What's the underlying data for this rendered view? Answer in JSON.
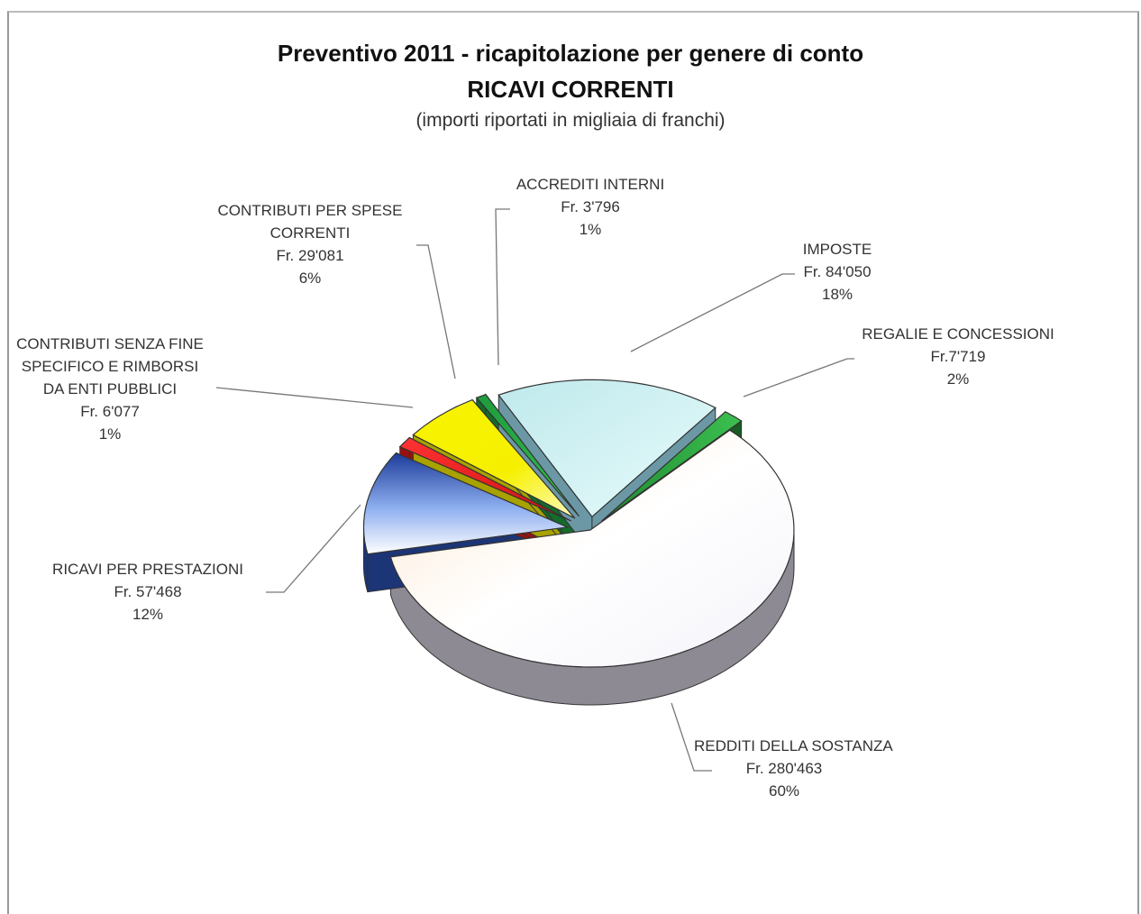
{
  "chart_data": {
    "type": "pie",
    "title": "Preventivo 2011  -  ricapitolazione per genere di conto",
    "subtitle": "RICAVI CORRENTI",
    "note": "(importi riportati in migliaia di franchi)",
    "slices": [
      {
        "key": "redditi",
        "lines": [
          "REDDITI DELLA SOSTANZA"
        ],
        "amount": "Fr. 280'463",
        "percent": "60%",
        "value": 280463,
        "color": "#fff8ee",
        "side": "#8e8a94"
      },
      {
        "key": "prestazioni",
        "lines": [
          "RICAVI PER PRESTAZIONI"
        ],
        "amount": "Fr. 57'468",
        "percent": "12%",
        "value": 57468,
        "color": "#2244aa",
        "side": "#1b3577"
      },
      {
        "key": "senza_fine",
        "lines": [
          "CONTRIBUTI SENZA FINE",
          "SPECIFICO  E RIMBORSI",
          "DA ENTI PUBBLICI"
        ],
        "amount": "Fr. 6'077",
        "percent": "1%",
        "value": 6077,
        "color": "#ee2222",
        "side": "#9a1010"
      },
      {
        "key": "spese_correnti",
        "lines": [
          "CONTRIBUTI PER SPESE",
          "CORRENTI"
        ],
        "amount": "Fr. 29'081",
        "percent": "6%",
        "value": 29081,
        "color": "#f5f000",
        "side": "#a7a200"
      },
      {
        "key": "accrediti",
        "lines": [
          "ACCREDITI INTERNI"
        ],
        "amount": "Fr. 3'796",
        "percent": "1%",
        "value": 3796,
        "color": "#22aa44",
        "side": "#156b2a"
      },
      {
        "key": "imposte",
        "lines": [
          "IMPOSTE"
        ],
        "amount": "Fr. 84'050",
        "percent": "18%",
        "value": 84050,
        "color": "#cfeff0",
        "side": "#6c98a6"
      },
      {
        "key": "regalie",
        "lines": [
          "REGALIE E CONCESSIONI"
        ],
        "amount": "Fr.7'719",
        "percent": "2%",
        "value": 7719,
        "color": "#2aa03a",
        "side": "#1a5a24"
      }
    ]
  }
}
